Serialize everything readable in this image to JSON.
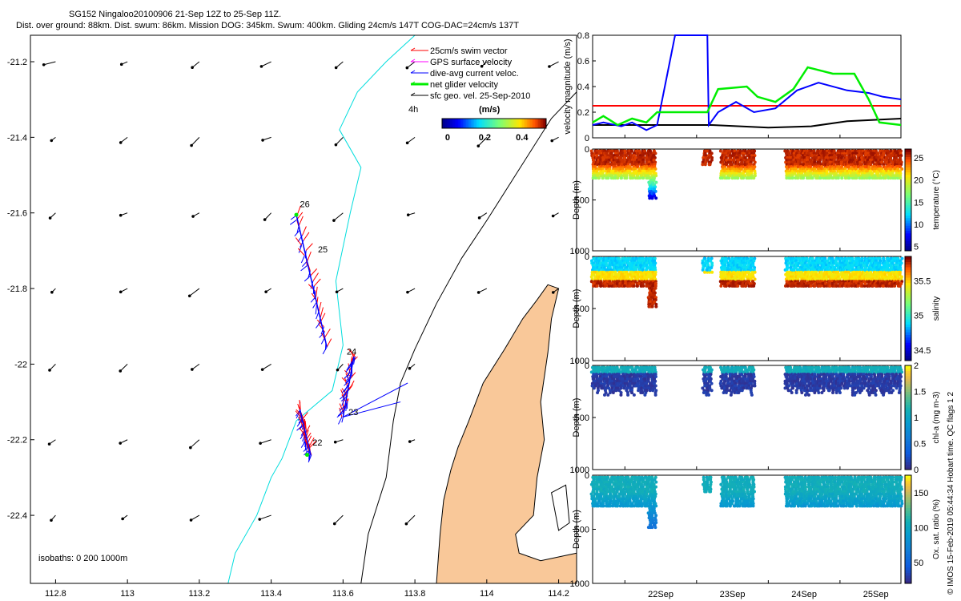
{
  "header": {
    "line1": "SG152 Ningaloo20100906 21-Sep 12Z to 25-Sep 11Z.",
    "line2": "Dist. over ground: 88km. Dist. swum: 86km. Mission DOG: 345km. Swum: 400km. Gliding 24cm/s 147T COG-DAC=24cm/s 137T"
  },
  "side_note": "© IMOS 15-Feb-2019 05:44:34 Hobart time. QC flags 1  2",
  "colors": {
    "land": "#f9c899",
    "coast": "#000000",
    "isobath": "#00dddd",
    "swim": "#ff0000",
    "gps": "#ff00ff",
    "current": "#0000ff",
    "net": "#00ee00",
    "geo": "#000000"
  },
  "map": {
    "legend": [
      {
        "label": "25cm/s swim vector",
        "color": "#ff0000"
      },
      {
        "label": "GPS surface velocity",
        "color": "#ff00ff"
      },
      {
        "label": "dive-avg current veloc.",
        "color": "#0000ff"
      },
      {
        "label": "net glider velocity",
        "color": "#00ee00"
      },
      {
        "label": "sfc geo. vel. 25-Sep-2010",
        "color": "#000000"
      }
    ],
    "scale_label": "4h",
    "colorbar_unit": "(m/s)",
    "isobath_label": "isobaths: 0   200  1000m",
    "day_labels": [
      {
        "text": "26",
        "lon": 113.48,
        "lat": -21.585
      },
      {
        "text": "25",
        "lon": 113.53,
        "lat": -21.705
      },
      {
        "text": "24",
        "lon": 113.61,
        "lat": -21.975
      },
      {
        "text": "23",
        "lon": 113.615,
        "lat": -22.135
      },
      {
        "text": "22",
        "lon": 113.515,
        "lat": -22.215
      }
    ]
  },
  "chart_data": [
    {
      "type": "scatter",
      "title": "glider track map",
      "x_ticks": [
        "112.8",
        "113",
        "113.2",
        "113.4",
        "113.6",
        "113.8",
        "114",
        "114.2"
      ],
      "y_ticks": [
        "-21.2",
        "-21.4",
        "-21.6",
        "-21.8",
        "-22",
        "-22.2",
        "-22.4"
      ],
      "xlim": [
        112.73,
        114.25
      ],
      "ylim": [
        -22.58,
        -21.13
      ],
      "colorbar": {
        "ticks": [
          "0",
          "0.2",
          "0.4"
        ],
        "range": [
          -0.03,
          0.53
        ]
      },
      "track_segments": [
        {
          "start": [
            113.47,
            -21.605
          ],
          "end": [
            113.555,
            -21.955
          ]
        },
        {
          "start": [
            113.6,
            -22.14
          ],
          "end": [
            113.63,
            -21.98
          ]
        },
        {
          "start": [
            113.48,
            -22.12
          ],
          "end": [
            113.51,
            -22.24
          ]
        }
      ]
    },
    {
      "type": "line",
      "ylabel": "velocity magnitude (m/s)",
      "y_ticks": [
        "0",
        "0.2",
        "0.4",
        "0.6",
        "0.8"
      ],
      "ylim": [
        0,
        0.8
      ],
      "series": [
        {
          "color": "#ff0000",
          "points": [
            [
              21.55,
              0.25
            ],
            [
              22.4,
              0.25
            ],
            [
              23.6,
              0.25
            ],
            [
              25.85,
              0.25
            ]
          ]
        },
        {
          "color": "#000000",
          "points": [
            [
              21.55,
              0.1
            ],
            [
              22.4,
              0.1
            ],
            [
              23.2,
              0.1
            ],
            [
              24.0,
              0.08
            ],
            [
              24.6,
              0.09
            ],
            [
              25.1,
              0.13
            ],
            [
              25.85,
              0.15
            ]
          ]
        },
        {
          "color": "#0000ff",
          "points": [
            [
              21.55,
              0.1
            ],
            [
              21.7,
              0.12
            ],
            [
              21.95,
              0.09
            ],
            [
              22.1,
              0.12
            ],
            [
              22.3,
              0.06
            ],
            [
              22.45,
              0.1
            ],
            [
              22.7,
              0.8
            ],
            [
              23.15,
              0.8
            ],
            [
              23.17,
              0.1
            ],
            [
              23.3,
              0.2
            ],
            [
              23.55,
              0.28
            ],
            [
              23.8,
              0.2
            ],
            [
              24.1,
              0.23
            ],
            [
              24.4,
              0.37
            ],
            [
              24.7,
              0.43
            ],
            [
              25.1,
              0.37
            ],
            [
              25.4,
              0.35
            ],
            [
              25.6,
              0.32
            ],
            [
              25.85,
              0.3
            ]
          ]
        },
        {
          "color": "#00ee00",
          "points": [
            [
              21.55,
              0.12
            ],
            [
              21.7,
              0.17
            ],
            [
              21.9,
              0.1
            ],
            [
              22.1,
              0.15
            ],
            [
              22.3,
              0.12
            ],
            [
              22.45,
              0.2
            ],
            [
              23.15,
              0.2
            ],
            [
              23.3,
              0.38
            ],
            [
              23.7,
              0.4
            ],
            [
              23.85,
              0.32
            ],
            [
              24.1,
              0.28
            ],
            [
              24.35,
              0.38
            ],
            [
              24.55,
              0.55
            ],
            [
              24.9,
              0.5
            ],
            [
              25.2,
              0.5
            ],
            [
              25.4,
              0.3
            ],
            [
              25.55,
              0.12
            ],
            [
              25.85,
              0.1
            ]
          ]
        }
      ]
    },
    {
      "type": "scatter",
      "ylabel": "Depth (m)",
      "clabel": "temperature (°C)",
      "y_ticks": [
        "0",
        "500",
        "1000"
      ],
      "ylim": [
        0,
        1000
      ],
      "cbar_ticks": [
        "5",
        "10",
        "15",
        "20",
        "25"
      ],
      "crange": [
        4,
        27
      ]
    },
    {
      "type": "scatter",
      "ylabel": "Depth (m)",
      "clabel": "salinity",
      "y_ticks": [
        "0",
        "500",
        "1000"
      ],
      "ylim": [
        0,
        1000
      ],
      "cbar_ticks": [
        "34.5",
        "35",
        "35.5"
      ],
      "crange": [
        34.35,
        35.85
      ]
    },
    {
      "type": "scatter",
      "ylabel": "Depth (m)",
      "clabel": "chl-a (mg m-3)",
      "y_ticks": [
        "0",
        "500",
        "1000"
      ],
      "ylim": [
        0,
        1000
      ],
      "cbar_ticks": [
        "0",
        "0.5",
        "1",
        "1.5",
        "2"
      ],
      "crange": [
        0,
        2
      ]
    },
    {
      "type": "scatter",
      "ylabel": "Depth (m)",
      "clabel": "Ox. sat. ratio (%)",
      "y_ticks": [
        "0",
        "500",
        "1000"
      ],
      "ylim": [
        0,
        1000
      ],
      "cbar_ticks": [
        "50",
        "100",
        "150"
      ],
      "crange": [
        20,
        175
      ],
      "x_ticks": [
        "22Sep",
        "23Sep",
        "24Sep",
        "25Sep"
      ]
    }
  ]
}
